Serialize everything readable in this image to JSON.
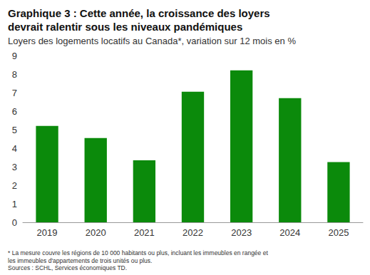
{
  "chart_data": {
    "type": "bar",
    "title": "Graphique 3 : Cette année, la croissance des loyers devrait ralentir sous les niveaux pandémiques",
    "subtitle": "Loyers des logements locatifs au Canada*, variation sur 12 mois en %",
    "notes": [
      "* La mesure couvre les régions de 10 000 habitants ou plus, incluant les immeubles en rangée et les immeubles d'appartements de trois unités ou plus.",
      "Sources : SCHL, Services économiques TD."
    ],
    "categories": [
      "2019",
      "2020",
      "2021",
      "2022",
      "2023",
      "2024",
      "2025"
    ],
    "values": [
      5.2,
      4.55,
      3.35,
      7.05,
      8.2,
      6.7,
      3.25
    ],
    "color": "#0b8a0b",
    "ylim": [
      0,
      9
    ],
    "yticks": [
      0,
      1,
      2,
      3,
      4,
      5,
      6,
      7,
      8,
      9
    ],
    "grid": false
  }
}
